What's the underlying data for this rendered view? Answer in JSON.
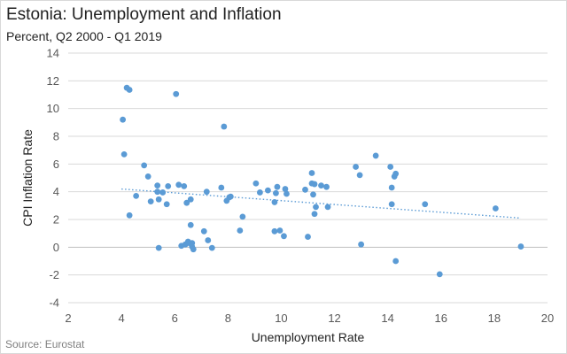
{
  "chart_data": {
    "type": "scatter",
    "title": "Estonia: Unemployment and Inflation",
    "subtitle": "Percent, Q2 2000 - Q1 2019",
    "xlabel": "Unemployment  Rate",
    "ylabel": "CPI Inflation Rate",
    "source": "Source: Eurostat",
    "xlim": [
      2,
      20
    ],
    "ylim": [
      -4,
      14
    ],
    "xticks": [
      2,
      4,
      6,
      8,
      10,
      12,
      14,
      16,
      18,
      20
    ],
    "yticks": [
      -4,
      -2,
      0,
      2,
      4,
      6,
      8,
      10,
      12,
      14
    ],
    "grid": "horizontal",
    "legend": "none",
    "marker_color": "#5b9bd5",
    "trendline": {
      "type": "linear",
      "style": "dotted",
      "from": [
        4.0,
        4.2
      ],
      "to": [
        19.0,
        2.1
      ]
    },
    "points": [
      [
        4.05,
        9.2
      ],
      [
        4.1,
        6.7
      ],
      [
        4.2,
        11.5
      ],
      [
        4.3,
        11.35
      ],
      [
        4.3,
        2.3
      ],
      [
        4.55,
        3.7
      ],
      [
        4.85,
        5.9
      ],
      [
        5.0,
        5.1
      ],
      [
        5.1,
        3.3
      ],
      [
        5.35,
        4.45
      ],
      [
        5.35,
        4.0
      ],
      [
        5.4,
        3.45
      ],
      [
        5.4,
        -0.05
      ],
      [
        5.55,
        3.95
      ],
      [
        5.7,
        3.1
      ],
      [
        5.75,
        4.4
      ],
      [
        6.05,
        11.05
      ],
      [
        6.15,
        4.5
      ],
      [
        6.25,
        0.1
      ],
      [
        6.35,
        4.4
      ],
      [
        6.4,
        0.2
      ],
      [
        6.45,
        3.2
      ],
      [
        6.5,
        0.4
      ],
      [
        6.55,
        0.3
      ],
      [
        6.6,
        3.45
      ],
      [
        6.6,
        1.6
      ],
      [
        6.65,
        0.3
      ],
      [
        6.65,
        0.05
      ],
      [
        6.7,
        -0.15
      ],
      [
        7.1,
        1.15
      ],
      [
        7.2,
        4.0
      ],
      [
        7.25,
        0.5
      ],
      [
        7.4,
        -0.05
      ],
      [
        7.75,
        4.3
      ],
      [
        7.85,
        8.7
      ],
      [
        7.95,
        3.35
      ],
      [
        8.05,
        3.6
      ],
      [
        8.1,
        3.65
      ],
      [
        8.45,
        1.2
      ],
      [
        8.55,
        2.2
      ],
      [
        9.05,
        4.6
      ],
      [
        9.2,
        3.95
      ],
      [
        9.5,
        4.1
      ],
      [
        9.75,
        1.15
      ],
      [
        9.75,
        3.25
      ],
      [
        9.8,
        3.9
      ],
      [
        9.85,
        4.35
      ],
      [
        9.95,
        1.2
      ],
      [
        10.1,
        0.8
      ],
      [
        10.15,
        4.2
      ],
      [
        10.2,
        3.85
      ],
      [
        10.9,
        4.15
      ],
      [
        11.0,
        0.75
      ],
      [
        11.15,
        5.35
      ],
      [
        11.15,
        4.6
      ],
      [
        11.2,
        3.8
      ],
      [
        11.25,
        4.55
      ],
      [
        11.25,
        2.4
      ],
      [
        11.3,
        2.9
      ],
      [
        11.5,
        4.45
      ],
      [
        11.7,
        4.35
      ],
      [
        11.75,
        2.9
      ],
      [
        12.8,
        5.8
      ],
      [
        12.95,
        5.2
      ],
      [
        13.0,
        0.2
      ],
      [
        13.55,
        6.6
      ],
      [
        14.1,
        5.8
      ],
      [
        14.15,
        4.3
      ],
      [
        14.15,
        3.1
      ],
      [
        14.25,
        5.1
      ],
      [
        14.3,
        5.3
      ],
      [
        14.3,
        -1.0
      ],
      [
        15.4,
        3.1
      ],
      [
        15.95,
        -1.95
      ],
      [
        18.05,
        2.8
      ],
      [
        19.0,
        0.05
      ]
    ]
  }
}
